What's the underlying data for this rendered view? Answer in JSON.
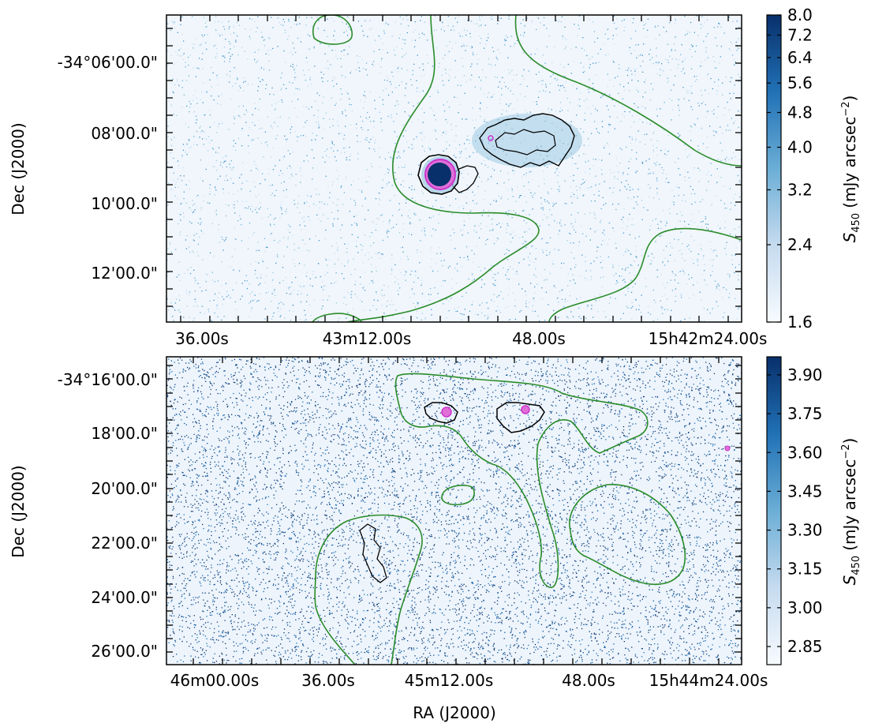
{
  "chart_data": [
    {
      "type": "heatmap",
      "panel": "top",
      "xlabel": "",
      "ylabel": "Dec (J2000)",
      "x_tick_labels": [
        "36.00s",
        "43m12.00s",
        "48.00s",
        "15h42m24.00s"
      ],
      "y_tick_labels": [
        "-34°06'00.0\"",
        "08'00.0\"",
        "10'00.0\"",
        "12'00.0\""
      ],
      "colorbar": {
        "label": "S_450 (mJy arcsec^-2)",
        "label_main": "(mJy arcsec",
        "label_sym": "S",
        "label_sub": "450",
        "label_exp": "−2",
        "label_close": ")",
        "ticks": [
          "8.0",
          "7.2",
          "6.4",
          "5.6",
          "4.8",
          "4.0",
          "3.2",
          "2.4",
          "1.6"
        ],
        "tick_values": [
          8.0,
          7.2,
          6.4,
          5.6,
          4.8,
          4.0,
          3.2,
          2.4,
          1.6
        ],
        "range": [
          1.6,
          8.0
        ],
        "scale": "log",
        "colormap": "Blues"
      },
      "contours": {
        "colors": [
          "#000000",
          "#cc33cc",
          "#2a8c2a"
        ]
      }
    },
    {
      "type": "heatmap",
      "panel": "bottom",
      "xlabel": "RA (J2000)",
      "ylabel": "Dec (J2000)",
      "x_tick_labels": [
        "46m00.00s",
        "36.00s",
        "45m12.00s",
        "48.00s",
        "15h44m24.00s"
      ],
      "y_tick_labels": [
        "-34°16'00.0\"",
        "18'00.0\"",
        "20'00.0\"",
        "22'00.0\"",
        "24'00.0\"",
        "26'00.0\""
      ],
      "colorbar": {
        "label": "S_450 (mJy arcsec^-2)",
        "label_main": "(mJy arcsec",
        "label_sym": "S",
        "label_sub": "450",
        "label_exp": "−2",
        "label_close": ")",
        "ticks": [
          "3.90",
          "3.75",
          "3.60",
          "3.45",
          "3.30",
          "3.15",
          "3.00",
          "2.85"
        ],
        "tick_values": [
          3.9,
          3.75,
          3.6,
          3.45,
          3.3,
          3.15,
          3.0,
          2.85
        ],
        "range": [
          2.78,
          3.97
        ],
        "scale": "linear",
        "colormap": "Blues"
      },
      "contours": {
        "colors": [
          "#000000",
          "#cc33cc",
          "#2a8c2a"
        ]
      }
    }
  ]
}
